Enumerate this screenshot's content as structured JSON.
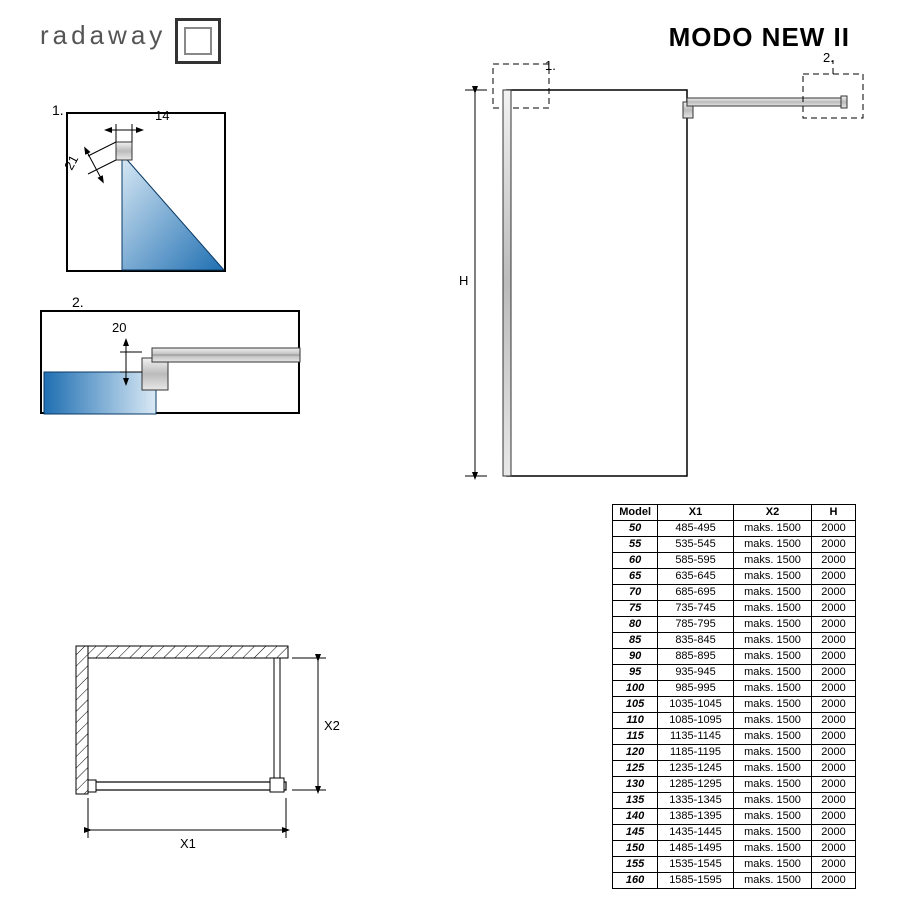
{
  "brand": "radaway",
  "title": "MODO NEW  II",
  "detail1": {
    "label": "1.",
    "dim_w": "14",
    "dim_h": "21"
  },
  "detail2": {
    "label": "2.",
    "dim_v": "20"
  },
  "main_view": {
    "callout1": "1.",
    "callout2": "2.",
    "height_label": "H"
  },
  "plan_view": {
    "x1": "X1",
    "x2": "X2"
  },
  "colors": {
    "glass_light": "#d9e9f5",
    "glass_dark": "#1f6fb2",
    "frame": "#000000",
    "metal_light": "#d0d0d0",
    "metal_dark": "#888888"
  },
  "table": {
    "headers": [
      "Model",
      "X1",
      "X2",
      "H"
    ],
    "rows": [
      [
        "50",
        "485-495",
        "maks. 1500",
        "2000"
      ],
      [
        "55",
        "535-545",
        "maks. 1500",
        "2000"
      ],
      [
        "60",
        "585-595",
        "maks. 1500",
        "2000"
      ],
      [
        "65",
        "635-645",
        "maks. 1500",
        "2000"
      ],
      [
        "70",
        "685-695",
        "maks. 1500",
        "2000"
      ],
      [
        "75",
        "735-745",
        "maks. 1500",
        "2000"
      ],
      [
        "80",
        "785-795",
        "maks. 1500",
        "2000"
      ],
      [
        "85",
        "835-845",
        "maks. 1500",
        "2000"
      ],
      [
        "90",
        "885-895",
        "maks. 1500",
        "2000"
      ],
      [
        "95",
        "935-945",
        "maks. 1500",
        "2000"
      ],
      [
        "100",
        "985-995",
        "maks. 1500",
        "2000"
      ],
      [
        "105",
        "1035-1045",
        "maks. 1500",
        "2000"
      ],
      [
        "110",
        "1085-1095",
        "maks. 1500",
        "2000"
      ],
      [
        "115",
        "1135-1145",
        "maks. 1500",
        "2000"
      ],
      [
        "120",
        "1185-1195",
        "maks. 1500",
        "2000"
      ],
      [
        "125",
        "1235-1245",
        "maks. 1500",
        "2000"
      ],
      [
        "130",
        "1285-1295",
        "maks. 1500",
        "2000"
      ],
      [
        "135",
        "1335-1345",
        "maks. 1500",
        "2000"
      ],
      [
        "140",
        "1385-1395",
        "maks. 1500",
        "2000"
      ],
      [
        "145",
        "1435-1445",
        "maks. 1500",
        "2000"
      ],
      [
        "150",
        "1485-1495",
        "maks. 1500",
        "2000"
      ],
      [
        "155",
        "1535-1545",
        "maks. 1500",
        "2000"
      ],
      [
        "160",
        "1585-1595",
        "maks. 1500",
        "2000"
      ]
    ]
  }
}
